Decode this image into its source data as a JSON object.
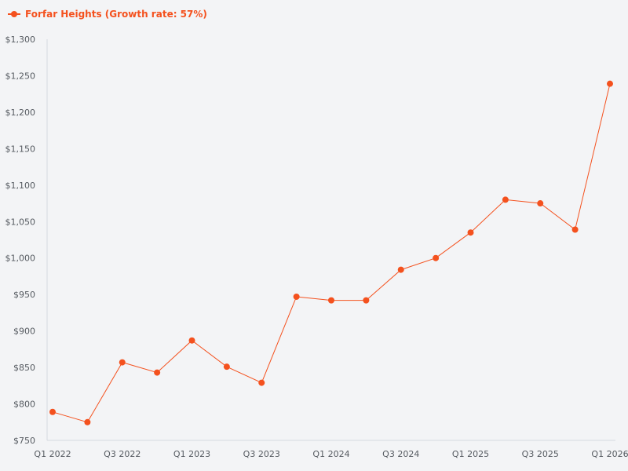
{
  "chart_data": {
    "type": "line",
    "title": "",
    "xlabel": "",
    "ylabel": "",
    "x": [
      "Q1 2022",
      "Q2 2022",
      "Q3 2022",
      "Q4 2022",
      "Q1 2023",
      "Q2 2023",
      "Q3 2023",
      "Q4 2023",
      "Q1 2024",
      "Q2 2024",
      "Q3 2024",
      "Q4 2024",
      "Q1 2025",
      "Q2 2025",
      "Q3 2025",
      "Q4 2025",
      "Q1 2026"
    ],
    "x_tick_labels": [
      "Q1 2022",
      "Q3 2022",
      "Q1 2023",
      "Q3 2023",
      "Q1 2024",
      "Q3 2024",
      "Q1 2025",
      "Q3 2025",
      "Q1 2026"
    ],
    "series": [
      {
        "name": "Forfar Heights (Growth rate: 57%)",
        "color": "#f4511e",
        "values": [
          789,
          775,
          857,
          843,
          887,
          851,
          829,
          947,
          942,
          942,
          984,
          1000,
          1035,
          1080,
          1075,
          1039,
          1239
        ]
      }
    ],
    "ylim": [
      750,
      1300
    ],
    "y_ticks": [
      750,
      800,
      850,
      900,
      950,
      1000,
      1050,
      1100,
      1150,
      1200,
      1250,
      1300
    ],
    "y_tick_prefix": "$",
    "grid": false,
    "legend_position": "top-left"
  }
}
